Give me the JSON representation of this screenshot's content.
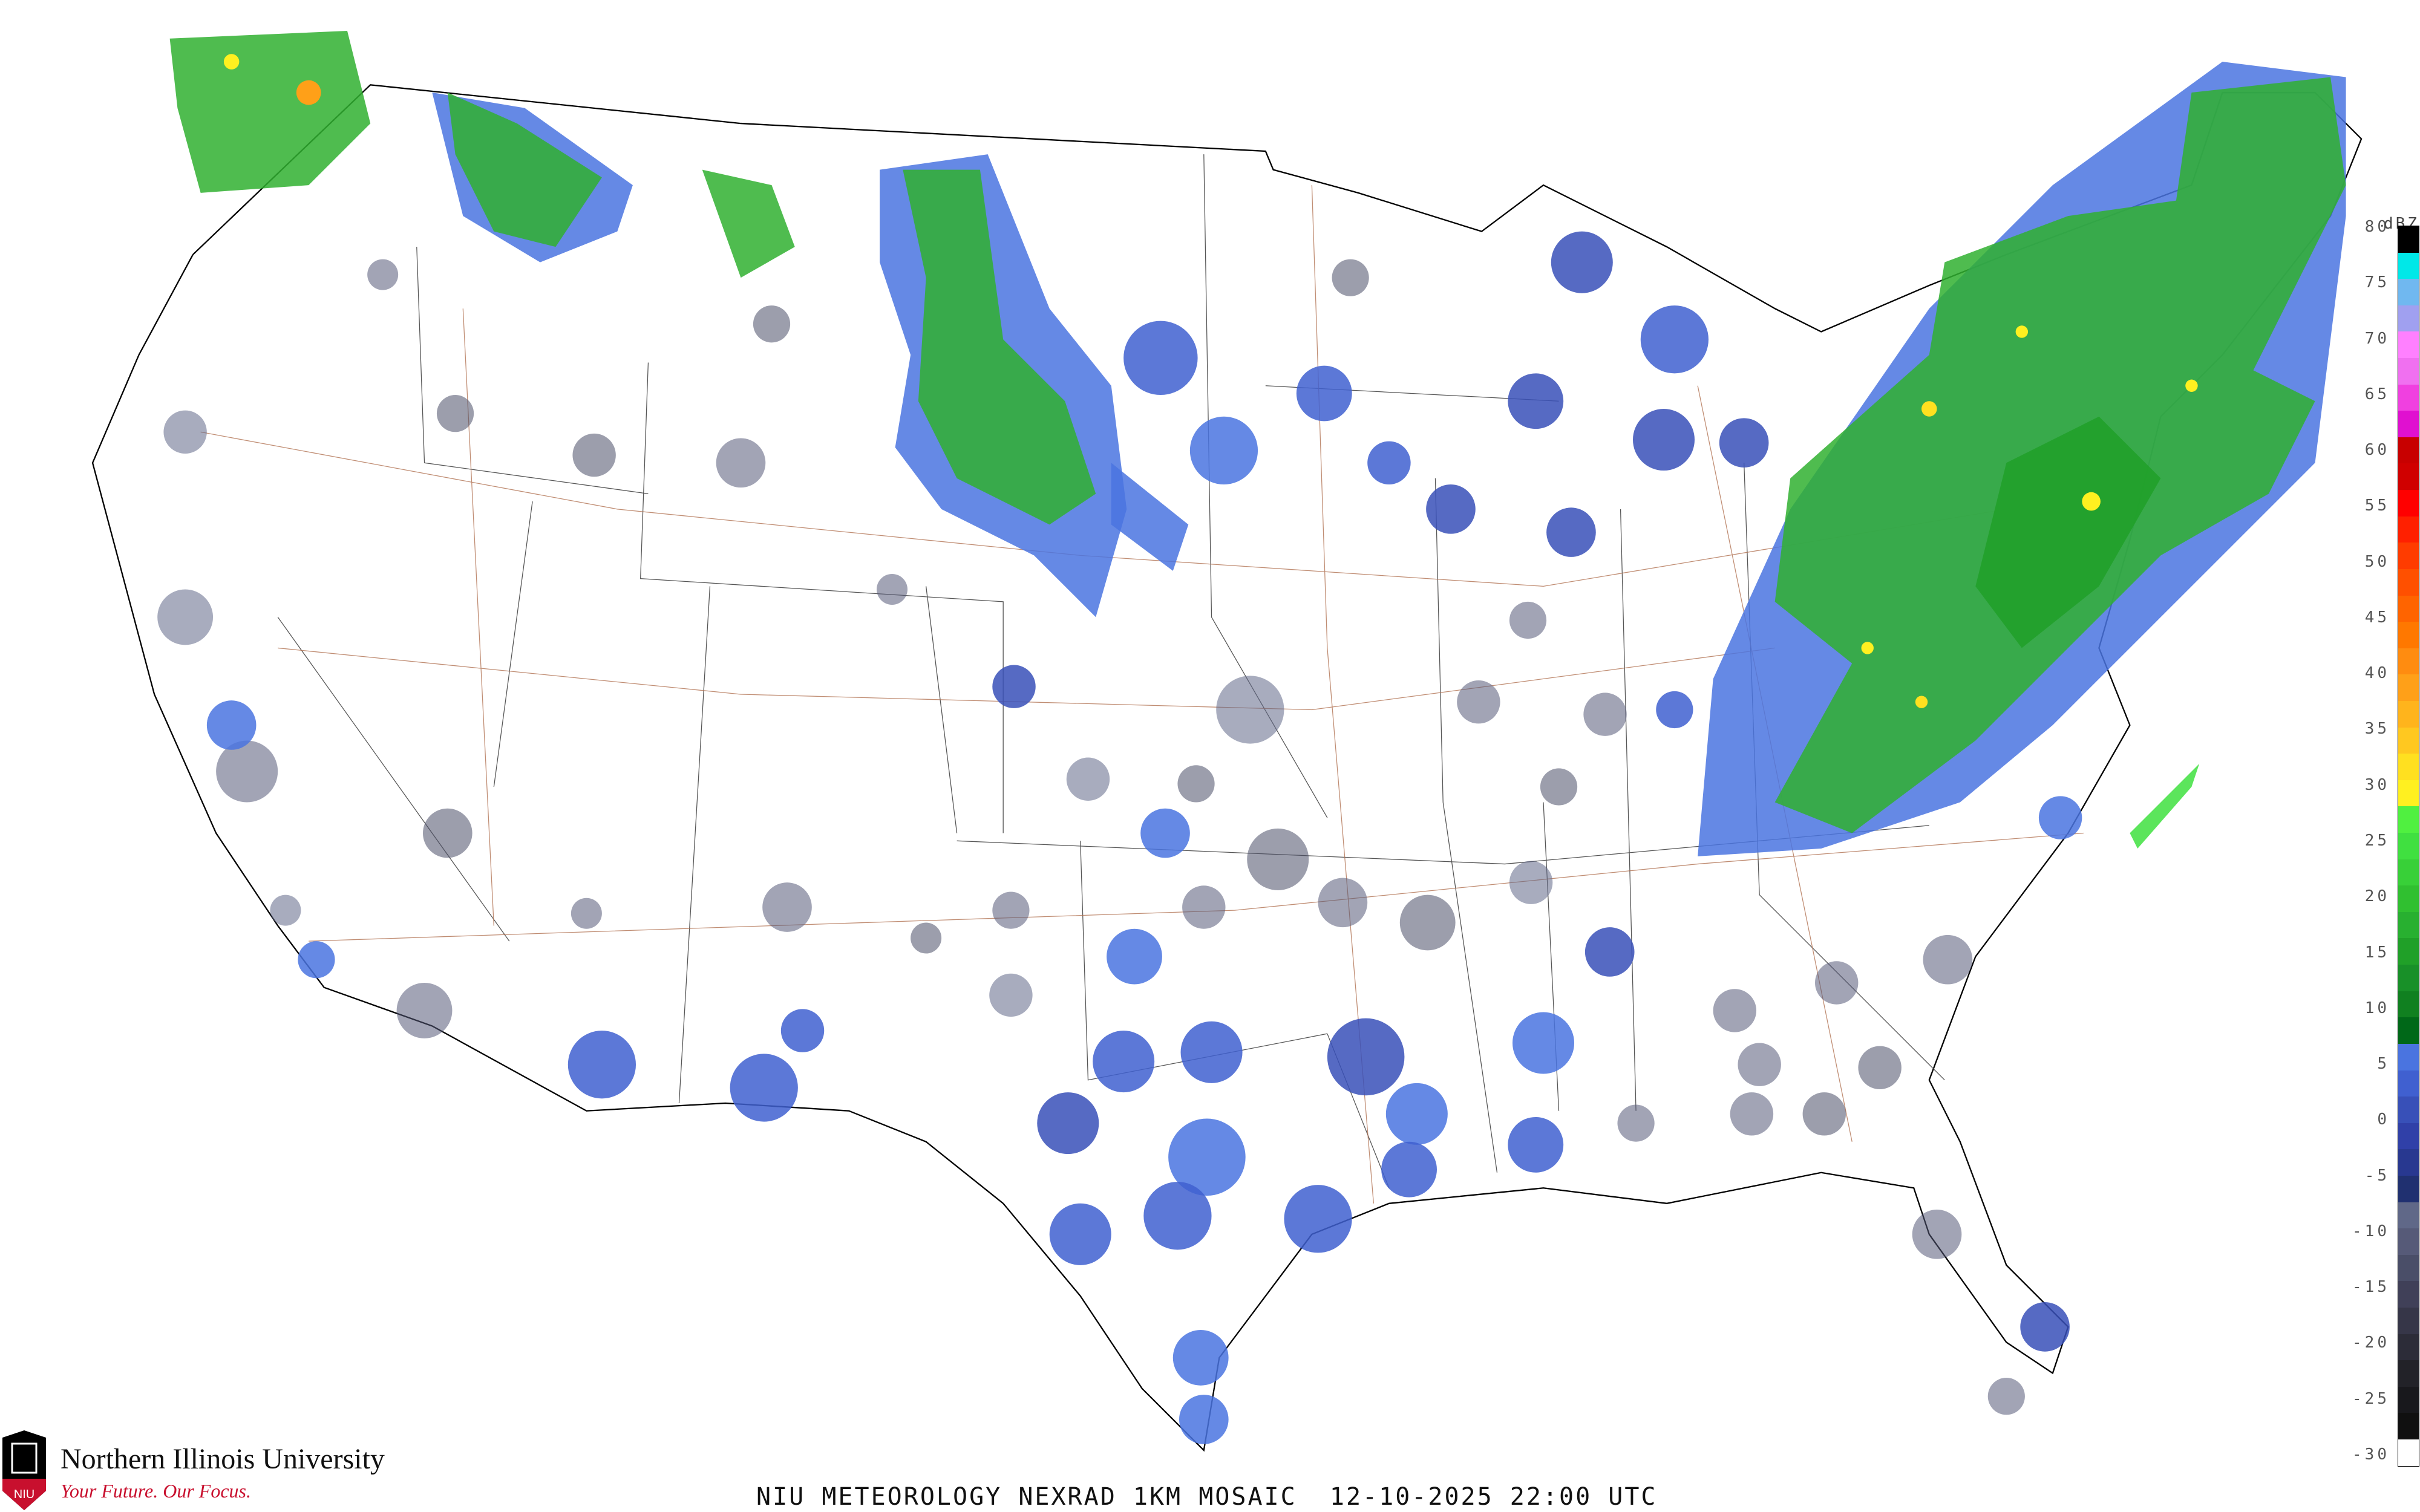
{
  "map": {
    "title": "NIU METEOROLOGY NEXRAD 1KM MOSAIC  12-10-2025 22:00 UTC",
    "product": "NEXRAD 1KM MOSAIC",
    "date": "12-10-2025",
    "time": "22:00 UTC",
    "region": "Contiguous United States"
  },
  "legend": {
    "unit": "dBZ",
    "ticks": [
      "80",
      "75",
      "70",
      "65",
      "60",
      "55",
      "50",
      "45",
      "40",
      "35",
      "30",
      "25",
      "20",
      "15",
      "10",
      "5",
      "0",
      "-5",
      "-10",
      "-15",
      "-20",
      "-25",
      "-30"
    ],
    "colors": [
      "#000000",
      "#00e8e8",
      "#70b8f0",
      "#a0a0f0",
      "#ff80ff",
      "#f070f0",
      "#f040e0",
      "#e010d0",
      "#c80000",
      "#d00000",
      "#ff0000",
      "#ff2000",
      "#ff3c00",
      "#ff5000",
      "#ff6400",
      "#ff7800",
      "#ff8c10",
      "#ffa018",
      "#ffb41c",
      "#ffc820",
      "#ffe020",
      "#fff020",
      "#50f040",
      "#40e040",
      "#38d038",
      "#30c030",
      "#28b030",
      "#20a028",
      "#189028",
      "#108020",
      "#006818",
      "#4a74e0",
      "#4060d0",
      "#3850b8",
      "#3040a8",
      "#283890",
      "#203070",
      "#606888",
      "#565a78",
      "#4a4e68",
      "#404058",
      "#363648",
      "#2c2c38",
      "#222228",
      "#18181c",
      "#101010",
      "#ffffff"
    ]
  },
  "logo": {
    "name": "Northern Illinois University",
    "tagline": "Your Future. Our Focus.",
    "mark": "NIU"
  },
  "colors": {
    "light_precip": "#4060d0",
    "clear_air": "#565a78",
    "moderate_precip": "#30b030",
    "heavy_precip": "#ffe020",
    "border": "#000000",
    "county_lines": "#c8c8c8",
    "highways": "#b07050"
  }
}
